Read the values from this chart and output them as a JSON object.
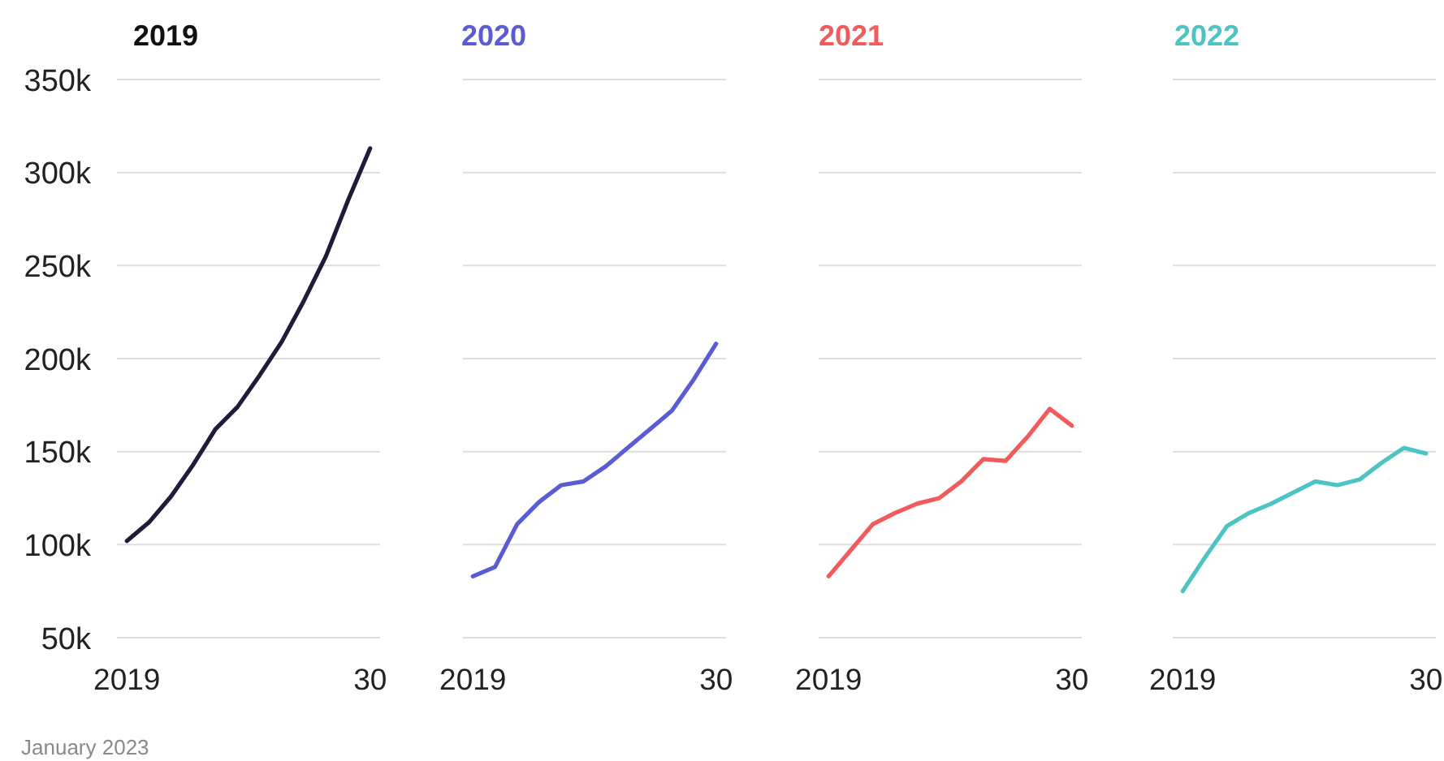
{
  "chart_data": [
    {
      "type": "line",
      "title": "2019",
      "categories": [
        "2019",
        null,
        null,
        null,
        null,
        null,
        null,
        null,
        null,
        null,
        null,
        "30"
      ],
      "series": [
        {
          "color": "#1e1b3b",
          "values": [
            102000,
            112000,
            126000,
            143000,
            162000,
            174000,
            191000,
            209000,
            231000,
            255000,
            285000,
            313000
          ]
        }
      ],
      "ylim": [
        50000,
        350000
      ],
      "yticks": [
        {
          "value": 50000,
          "label": "50k"
        },
        {
          "value": 100000,
          "label": "100k"
        },
        {
          "value": 150000,
          "label": "150k"
        },
        {
          "value": 200000,
          "label": "200k"
        },
        {
          "value": 250000,
          "label": "250k"
        },
        {
          "value": 300000,
          "label": "300k"
        },
        {
          "value": 350000,
          "label": "350k"
        }
      ],
      "grid": "y",
      "annotations": [
        "January 2023"
      ]
    },
    {
      "type": "line",
      "title": "2020",
      "categories": [
        "2019",
        null,
        null,
        null,
        null,
        null,
        null,
        null,
        null,
        null,
        null,
        "30"
      ],
      "series": [
        {
          "color": "#5b5bd6",
          "values": [
            83000,
            88000,
            111000,
            123000,
            132000,
            134000,
            142000,
            152000,
            162000,
            172000,
            189000,
            208000
          ]
        }
      ],
      "ylim": [
        50000,
        350000
      ],
      "yticks": [
        50000,
        100000,
        150000,
        200000,
        250000,
        300000,
        350000
      ],
      "grid": "y",
      "tick_labels": "x"
    },
    {
      "type": "line",
      "title": "2021",
      "categories": [
        "2019",
        null,
        null,
        null,
        null,
        null,
        null,
        null,
        null,
        null,
        null,
        "30"
      ],
      "series": [
        {
          "color": "#f25b5b",
          "values": [
            83000,
            97000,
            111000,
            117000,
            122000,
            125000,
            134000,
            146000,
            145000,
            158000,
            173000,
            164000
          ]
        }
      ],
      "ylim": [
        50000,
        350000
      ],
      "yticks": [
        50000,
        100000,
        150000,
        200000,
        250000,
        300000,
        350000
      ],
      "grid": "y",
      "tick_labels": "x"
    },
    {
      "type": "line",
      "title": "2022",
      "categories": [
        "2019",
        null,
        null,
        null,
        null,
        null,
        null,
        null,
        null,
        null,
        null,
        "30"
      ],
      "series": [
        {
          "color": "#4dc4c4",
          "values": [
            75000,
            93000,
            110000,
            117000,
            122000,
            128000,
            134000,
            132000,
            135000,
            144000,
            152000,
            149000
          ]
        }
      ],
      "ylim": [
        50000,
        350000
      ],
      "yticks": [
        50000,
        100000,
        150000,
        200000,
        250000,
        300000,
        350000
      ],
      "grid": "y",
      "tick_labels": "x"
    }
  ]
}
